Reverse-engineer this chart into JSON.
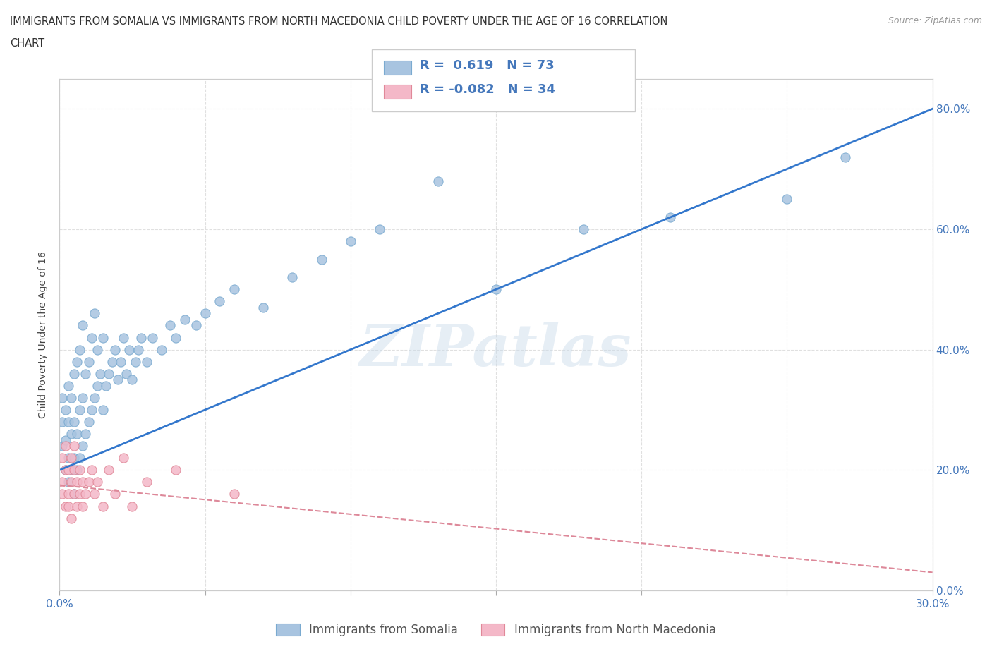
{
  "title_line1": "IMMIGRANTS FROM SOMALIA VS IMMIGRANTS FROM NORTH MACEDONIA CHILD POVERTY UNDER THE AGE OF 16 CORRELATION",
  "title_line2": "CHART",
  "source": "Source: ZipAtlas.com",
  "ylabel": "Child Poverty Under the Age of 16",
  "xlim": [
    0.0,
    0.3
  ],
  "ylim": [
    0.0,
    0.85
  ],
  "xticks": [
    0.0,
    0.05,
    0.1,
    0.15,
    0.2,
    0.25,
    0.3
  ],
  "yticks": [
    0.0,
    0.2,
    0.4,
    0.6,
    0.8
  ],
  "ytick_labels_right": [
    "0.0%",
    "20.0%",
    "40.0%",
    "60.0%",
    "80.0%"
  ],
  "xtick_labels": [
    "0.0%",
    "",
    "",
    "",
    "",
    "",
    "30.0%"
  ],
  "somalia_color": "#a8c4e0",
  "somalia_edge_color": "#7aaad0",
  "somalia_line_color": "#3377cc",
  "macedonia_color": "#f4b8c8",
  "macedonia_edge_color": "#e08898",
  "macedonia_line_color": "#dd8899",
  "background_color": "#ffffff",
  "grid_color": "#e0e0e0",
  "R_somalia": 0.619,
  "N_somalia": 73,
  "R_macedonia": -0.082,
  "N_macedonia": 34,
  "legend_label_somalia": "Immigrants from Somalia",
  "legend_label_macedonia": "Immigrants from North Macedonia",
  "watermark": "ZIPatlas",
  "text_color": "#4477bb",
  "somalia_line_x0": 0.0,
  "somalia_line_y0": 0.2,
  "somalia_line_x1": 0.3,
  "somalia_line_y1": 0.8,
  "macedonia_line_x0": 0.0,
  "macedonia_line_y0": 0.175,
  "macedonia_line_x1": 0.3,
  "macedonia_line_y1": 0.03,
  "somalia_scatter_x": [
    0.001,
    0.001,
    0.001,
    0.002,
    0.002,
    0.002,
    0.003,
    0.003,
    0.003,
    0.003,
    0.004,
    0.004,
    0.004,
    0.005,
    0.005,
    0.005,
    0.005,
    0.006,
    0.006,
    0.006,
    0.007,
    0.007,
    0.007,
    0.008,
    0.008,
    0.008,
    0.009,
    0.009,
    0.01,
    0.01,
    0.011,
    0.011,
    0.012,
    0.012,
    0.013,
    0.013,
    0.014,
    0.015,
    0.015,
    0.016,
    0.017,
    0.018,
    0.019,
    0.02,
    0.021,
    0.022,
    0.023,
    0.024,
    0.025,
    0.026,
    0.027,
    0.028,
    0.03,
    0.032,
    0.035,
    0.038,
    0.04,
    0.043,
    0.047,
    0.05,
    0.055,
    0.06,
    0.07,
    0.08,
    0.09,
    0.1,
    0.11,
    0.13,
    0.15,
    0.18,
    0.21,
    0.25,
    0.27
  ],
  "somalia_scatter_y": [
    0.24,
    0.28,
    0.32,
    0.2,
    0.25,
    0.3,
    0.18,
    0.22,
    0.28,
    0.34,
    0.2,
    0.26,
    0.32,
    0.16,
    0.22,
    0.28,
    0.36,
    0.2,
    0.26,
    0.38,
    0.22,
    0.3,
    0.4,
    0.24,
    0.32,
    0.44,
    0.26,
    0.36,
    0.28,
    0.38,
    0.3,
    0.42,
    0.32,
    0.46,
    0.34,
    0.4,
    0.36,
    0.3,
    0.42,
    0.34,
    0.36,
    0.38,
    0.4,
    0.35,
    0.38,
    0.42,
    0.36,
    0.4,
    0.35,
    0.38,
    0.4,
    0.42,
    0.38,
    0.42,
    0.4,
    0.44,
    0.42,
    0.45,
    0.44,
    0.46,
    0.48,
    0.5,
    0.47,
    0.52,
    0.55,
    0.58,
    0.6,
    0.68,
    0.5,
    0.6,
    0.62,
    0.65,
    0.72
  ],
  "macedonia_scatter_x": [
    0.001,
    0.001,
    0.001,
    0.002,
    0.002,
    0.002,
    0.003,
    0.003,
    0.003,
    0.004,
    0.004,
    0.004,
    0.005,
    0.005,
    0.005,
    0.006,
    0.006,
    0.007,
    0.007,
    0.008,
    0.008,
    0.009,
    0.01,
    0.011,
    0.012,
    0.013,
    0.015,
    0.017,
    0.019,
    0.022,
    0.025,
    0.03,
    0.04,
    0.06
  ],
  "macedonia_scatter_y": [
    0.18,
    0.22,
    0.16,
    0.14,
    0.2,
    0.24,
    0.16,
    0.2,
    0.14,
    0.18,
    0.22,
    0.12,
    0.16,
    0.2,
    0.24,
    0.14,
    0.18,
    0.16,
    0.2,
    0.14,
    0.18,
    0.16,
    0.18,
    0.2,
    0.16,
    0.18,
    0.14,
    0.2,
    0.16,
    0.22,
    0.14,
    0.18,
    0.2,
    0.16
  ]
}
